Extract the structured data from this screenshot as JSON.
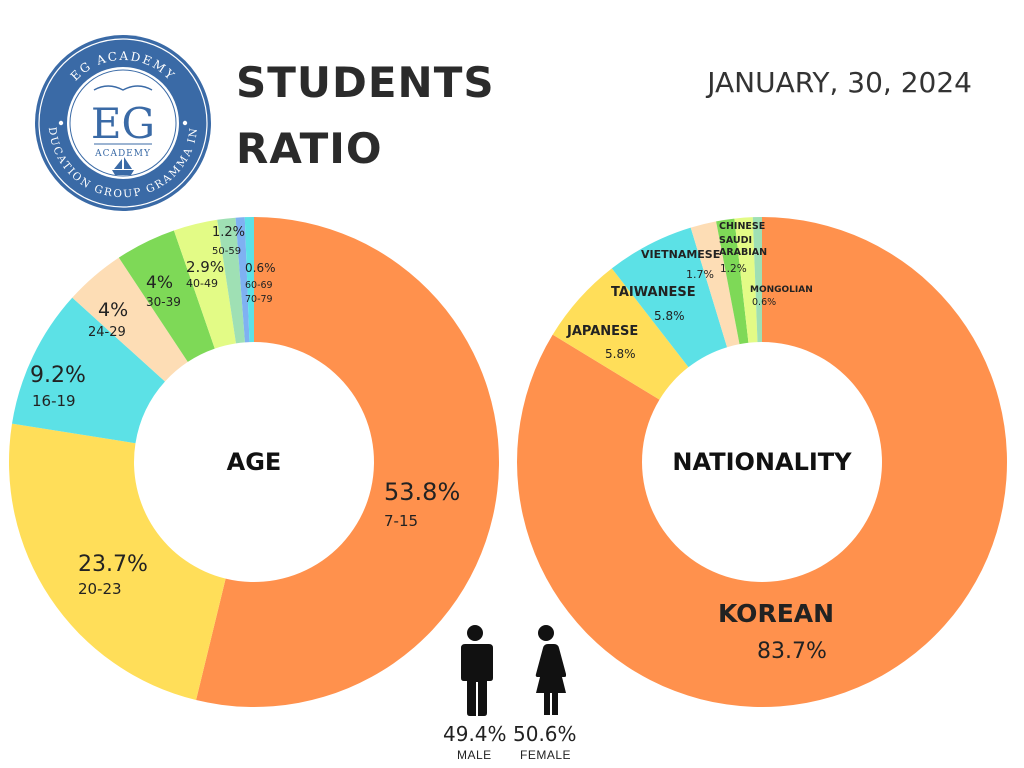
{
  "header": {
    "title_line1": "STUDENTS",
    "title_line2": "RATIO",
    "date": "JANUARY, 30, 2024"
  },
  "logo": {
    "arc_top": "EG ACADEMY",
    "arc_bottom": "EDUCATION GROUP GRAMMA INC",
    "monogram": "EG",
    "academy": "ACADEMY"
  },
  "chart_data": [
    {
      "type": "pie",
      "title": "AGE",
      "slices": [
        {
          "label": "7-15",
          "value": 53.8,
          "display": "53.8%",
          "color": "#FF914D"
        },
        {
          "label": "20-23",
          "value": 23.7,
          "display": "23.7%",
          "color": "#FFDE59"
        },
        {
          "label": "16-19",
          "value": 9.2,
          "display": "9.2%",
          "color": "#5CE1E6"
        },
        {
          "label": "24-29",
          "value": 4.0,
          "display": "4%",
          "color": "#FDDDB5"
        },
        {
          "label": "30-39",
          "value": 4.0,
          "display": "4%",
          "color": "#7ED957"
        },
        {
          "label": "40-49",
          "value": 2.9,
          "display": "2.9%",
          "color": "#E3FB86"
        },
        {
          "label": "50-59",
          "value": 1.2,
          "display": "1.2%",
          "color": "#9FE0B4"
        },
        {
          "label": "60-69",
          "value": 0.6,
          "display": "0.6%",
          "color": "#7FB1F2"
        },
        {
          "label": "70-79",
          "value": 0.6,
          "display": "",
          "color": "#5CE1E6"
        }
      ]
    },
    {
      "type": "pie",
      "title": "NATIONALITY",
      "slices": [
        {
          "label": "KOREAN",
          "value": 83.7,
          "display": "83.7%",
          "color": "#FF914D"
        },
        {
          "label": "JAPANESE",
          "value": 5.8,
          "display": "5.8%",
          "color": "#FFDE59"
        },
        {
          "label": "TAIWANESE",
          "value": 5.8,
          "display": "5.8%",
          "color": "#5CE1E6"
        },
        {
          "label": "VIETNAMESE",
          "value": 1.7,
          "display": "1.7%",
          "color": "#FDDDB5"
        },
        {
          "label": "CHINESE",
          "value": 1.2,
          "display": "",
          "color": "#7ED957"
        },
        {
          "label": "SAUDI ARABIAN",
          "value": 1.2,
          "display": "1.2%",
          "color": "#E3FB86"
        },
        {
          "label": "MONGOLIAN",
          "value": 0.6,
          "display": "0.6%",
          "color": "#9FE0B4"
        }
      ]
    },
    {
      "type": "table",
      "title": "",
      "rows": [
        {
          "label": "MALE",
          "value": 49.4,
          "display": "49.4%"
        },
        {
          "label": "FEMALE",
          "value": 50.6,
          "display": "50.6%"
        }
      ]
    }
  ],
  "icons": {
    "male": "male-person-icon",
    "female": "female-person-icon"
  }
}
